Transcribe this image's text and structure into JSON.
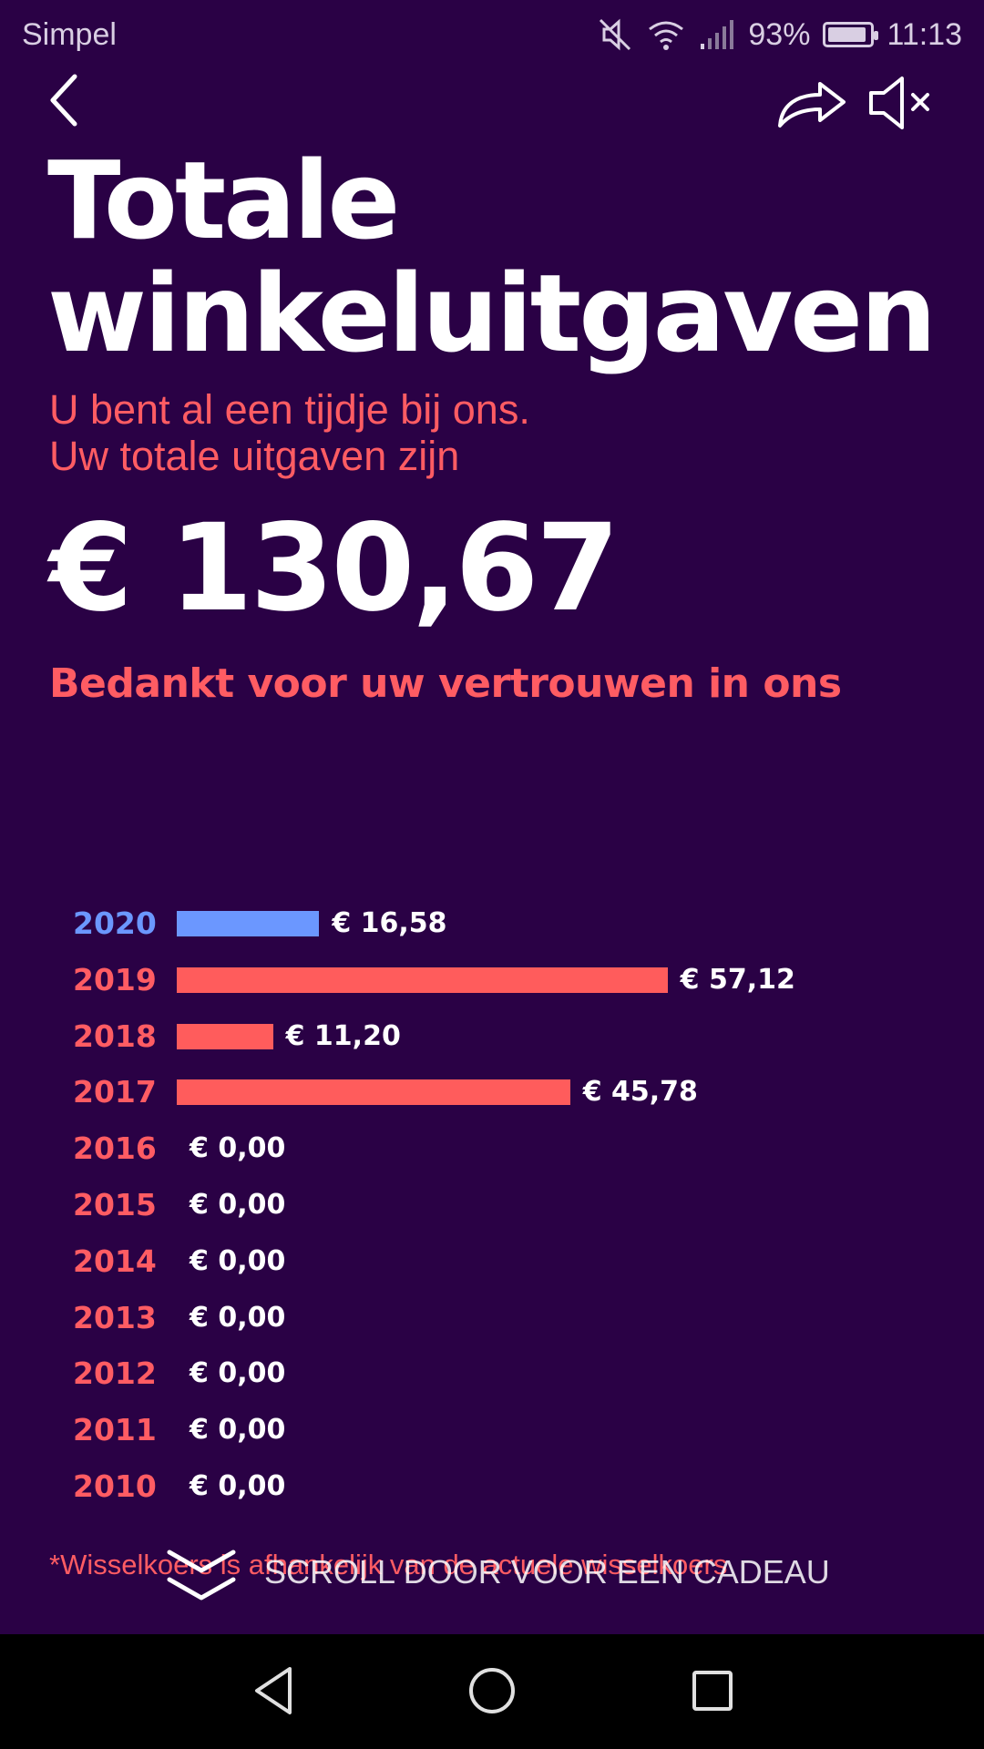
{
  "status_bar": {
    "carrier": "Simpel",
    "battery": "93%",
    "battery_level": 0.93,
    "time": "11:13",
    "icons": [
      "mute-icon",
      "wifi-icon",
      "signal-icon",
      "battery-icon"
    ]
  },
  "header": {
    "back_icon": "chevron-left-icon",
    "share_icon": "share-arrow-icon",
    "mute_icon": "speaker-muted-icon"
  },
  "title": "Totale winkeluitgaven",
  "subtitle_line1": "U bent al een tijdje bij ons.",
  "subtitle_line2": "Uw totale uitgaven zijn",
  "total": "€ 130,67",
  "thanks": "Bedankt voor uw vertrouwen in ons",
  "footnote": "*Wisselkoers is afhankelijk van de actuele wisselkoers",
  "scroll_hint": {
    "icon": "double-chevron-down-icon",
    "text": "SCROLL DOOR VOOR EEN CADEAU"
  },
  "nav_bar": {
    "back_icon": "triangle-back-icon",
    "home_icon": "circle-home-icon",
    "recent_icon": "square-recent-icon"
  },
  "colors": {
    "background": "#2a0145",
    "accent": "#ff5c63",
    "current_year": "#6b97ff"
  },
  "chart_data": {
    "type": "bar",
    "orientation": "horizontal",
    "categories": [
      "2020",
      "2019",
      "2018",
      "2017",
      "2016",
      "2015",
      "2014",
      "2013",
      "2012",
      "2011",
      "2010"
    ],
    "values": [
      16.58,
      57.12,
      11.2,
      45.78,
      0,
      0,
      0,
      0,
      0,
      0,
      0
    ],
    "value_labels": [
      "€ 16,58",
      "€ 57,12",
      "€ 11,20",
      "€ 45,78",
      "€ 0,00",
      "€ 0,00",
      "€ 0,00",
      "€ 0,00",
      "€ 0,00",
      "€ 0,00",
      "€ 0,00"
    ],
    "highlight_category": "2020",
    "grid": false
  }
}
